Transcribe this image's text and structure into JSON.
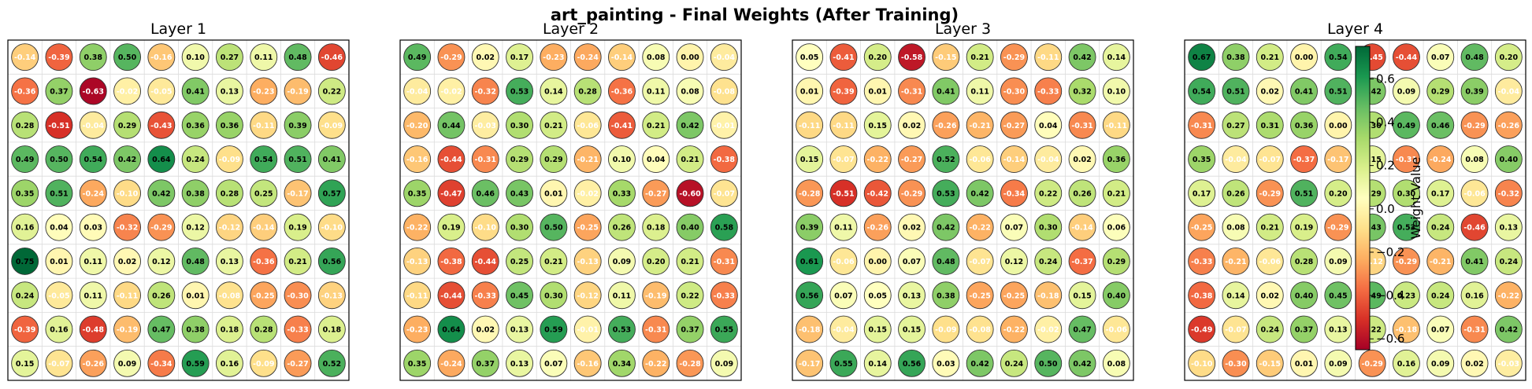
{
  "chart_data": {
    "type": "heatmap",
    "title": "art_painting - Final Weights (After Training)",
    "colorbar": {
      "label": "Weight Value",
      "range": [
        -0.65,
        0.75
      ],
      "ticks": [
        -0.6,
        -0.4,
        -0.2,
        0.0,
        0.2,
        0.4,
        0.6
      ],
      "tick_labels": [
        "−0.6",
        "−0.4",
        "−0.2",
        "0.0",
        "0.2",
        "0.4",
        "0.6"
      ],
      "colormap": "RdYlGn"
    },
    "panels": [
      {
        "title": "Layer 1",
        "values": [
          [
            "-0.14",
            "-0.39",
            "0.38",
            "0.50",
            "-0.16",
            "0.10",
            "0.27",
            "0.11",
            "0.48",
            "-0.46"
          ],
          [
            "-0.36",
            "0.37",
            "-0.63",
            "-0.02",
            "-0.05",
            "0.41",
            "0.13",
            "-0.23",
            "-0.19",
            "0.22"
          ],
          [
            "0.28",
            "-0.51",
            "-0.04",
            "0.29",
            "-0.43",
            "0.36",
            "0.36",
            "-0.11",
            "0.39",
            "-0.09"
          ],
          [
            "0.49",
            "0.50",
            "0.54",
            "0.42",
            "0.64",
            "0.24",
            "-0.09",
            "0.54",
            "0.51",
            "0.41"
          ],
          [
            "0.35",
            "0.51",
            "-0.24",
            "-0.10",
            "0.42",
            "0.38",
            "0.28",
            "0.25",
            "-0.17",
            "0.57"
          ],
          [
            "0.16",
            "0.04",
            "0.03",
            "-0.32",
            "-0.29",
            "0.12",
            "-0.12",
            "-0.14",
            "0.19",
            "-0.10"
          ],
          [
            "0.75",
            "0.01",
            "0.11",
            "0.02",
            "0.12",
            "0.48",
            "0.13",
            "-0.36",
            "0.21",
            "0.56"
          ],
          [
            "0.24",
            "-0.05",
            "0.11",
            "-0.11",
            "0.26",
            "0.01",
            "-0.08",
            "-0.25",
            "-0.30",
            "-0.13"
          ],
          [
            "-0.39",
            "0.16",
            "-0.48",
            "-0.19",
            "0.47",
            "0.38",
            "0.18",
            "0.28",
            "-0.33",
            "0.18"
          ],
          [
            "0.15",
            "-0.07",
            "-0.26",
            "0.09",
            "-0.34",
            "0.59",
            "0.16",
            "-0.09",
            "-0.27",
            "0.52"
          ]
        ]
      },
      {
        "title": "Layer 2",
        "values": [
          [
            "0.49",
            "-0.29",
            "0.02",
            "0.17",
            "-0.23",
            "-0.24",
            "-0.14",
            "0.08",
            "0.00",
            "-0.04"
          ],
          [
            "-0.04",
            "-0.02",
            "-0.32",
            "0.53",
            "0.14",
            "0.28",
            "-0.36",
            "0.11",
            "0.08",
            "-0.08"
          ],
          [
            "-0.20",
            "0.44",
            "-0.03",
            "0.30",
            "0.21",
            "-0.06",
            "-0.41",
            "0.21",
            "0.42",
            "-0.01"
          ],
          [
            "-0.16",
            "-0.44",
            "-0.31",
            "0.29",
            "0.29",
            "-0.21",
            "0.10",
            "0.04",
            "0.21",
            "-0.38"
          ],
          [
            "0.35",
            "-0.47",
            "0.46",
            "0.43",
            "0.01",
            "-0.02",
            "0.33",
            "-0.27",
            "-0.60",
            "-0.07"
          ],
          [
            "-0.22",
            "0.19",
            "-0.10",
            "0.30",
            "0.50",
            "-0.25",
            "0.26",
            "0.18",
            "0.40",
            "0.58"
          ],
          [
            "-0.13",
            "-0.38",
            "-0.44",
            "0.25",
            "0.21",
            "-0.13",
            "0.09",
            "0.20",
            "0.21",
            "-0.31"
          ],
          [
            "-0.11",
            "-0.44",
            "-0.33",
            "0.45",
            "0.30",
            "-0.12",
            "0.11",
            "-0.19",
            "0.22",
            "-0.33"
          ],
          [
            "-0.23",
            "0.64",
            "0.02",
            "0.13",
            "0.59",
            "-0.01",
            "0.53",
            "-0.31",
            "0.37",
            "0.55"
          ],
          [
            "0.35",
            "-0.24",
            "0.37",
            "0.13",
            "0.07",
            "-0.16",
            "0.34",
            "-0.22",
            "-0.28",
            "0.09"
          ]
        ]
      },
      {
        "title": "Layer 3",
        "values": [
          [
            "0.05",
            "-0.41",
            "0.20",
            "-0.58",
            "-0.15",
            "0.21",
            "-0.29",
            "-0.11",
            "0.42",
            "0.14"
          ],
          [
            "0.01",
            "-0.39",
            "0.01",
            "-0.31",
            "0.41",
            "0.11",
            "-0.30",
            "-0.33",
            "0.32",
            "0.10"
          ],
          [
            "-0.11",
            "-0.11",
            "0.15",
            "0.02",
            "-0.26",
            "-0.21",
            "-0.27",
            "0.04",
            "-0.31",
            "-0.11"
          ],
          [
            "0.15",
            "-0.07",
            "-0.22",
            "-0.27",
            "0.52",
            "-0.06",
            "-0.14",
            "-0.04",
            "0.02",
            "0.36"
          ],
          [
            "-0.28",
            "-0.51",
            "-0.42",
            "-0.29",
            "0.53",
            "0.42",
            "-0.34",
            "0.22",
            "0.26",
            "0.21"
          ],
          [
            "0.39",
            "0.11",
            "-0.26",
            "0.02",
            "0.42",
            "-0.22",
            "0.07",
            "0.30",
            "-0.14",
            "0.06"
          ],
          [
            "0.61",
            "-0.06",
            "0.00",
            "0.07",
            "0.48",
            "-0.07",
            "0.12",
            "0.24",
            "-0.37",
            "0.29"
          ],
          [
            "0.56",
            "0.07",
            "0.05",
            "0.13",
            "0.38",
            "-0.25",
            "-0.25",
            "-0.18",
            "0.15",
            "0.40"
          ],
          [
            "-0.18",
            "-0.04",
            "0.15",
            "0.15",
            "-0.09",
            "-0.08",
            "-0.22",
            "-0.02",
            "0.47",
            "-0.06"
          ],
          [
            "-0.17",
            "0.55",
            "0.14",
            "0.56",
            "0.03",
            "0.42",
            "0.24",
            "0.50",
            "0.42",
            "0.08"
          ]
        ]
      },
      {
        "title": "Layer 4",
        "values": [
          [
            "0.67",
            "0.38",
            "0.21",
            "0.00",
            "0.54",
            "-0.45",
            "-0.44",
            "0.07",
            "0.48",
            "0.20"
          ],
          [
            "0.54",
            "0.51",
            "0.02",
            "0.41",
            "0.51",
            "0.42",
            "0.09",
            "0.29",
            "0.39",
            "-0.04"
          ],
          [
            "-0.31",
            "0.27",
            "0.31",
            "0.36",
            "0.00",
            "0.30",
            "0.49",
            "0.46",
            "-0.29",
            "-0.26"
          ],
          [
            "0.35",
            "-0.04",
            "-0.07",
            "-0.37",
            "-0.17",
            "0.15",
            "-0.31",
            "-0.24",
            "0.08",
            "0.40"
          ],
          [
            "0.17",
            "0.26",
            "-0.29",
            "0.51",
            "0.20",
            "0.29",
            "0.30",
            "0.17",
            "-0.06",
            "-0.32"
          ],
          [
            "-0.25",
            "0.08",
            "0.21",
            "0.19",
            "-0.29",
            "0.43",
            "0.53",
            "0.24",
            "-0.46",
            "0.13"
          ],
          [
            "-0.33",
            "-0.21",
            "-0.06",
            "0.28",
            "0.09",
            "-0.12",
            "-0.29",
            "-0.21",
            "0.41",
            "0.24"
          ],
          [
            "-0.38",
            "0.14",
            "0.02",
            "0.40",
            "0.45",
            "0.49",
            "0.23",
            "0.24",
            "0.16",
            "-0.22"
          ],
          [
            "-0.49",
            "-0.07",
            "0.24",
            "0.37",
            "0.13",
            "0.22",
            "-0.18",
            "0.07",
            "-0.31",
            "0.42"
          ],
          [
            "-0.10",
            "-0.30",
            "-0.15",
            "0.01",
            "0.09",
            "-0.29",
            "0.16",
            "0.09",
            "0.02",
            "-0.03"
          ]
        ]
      }
    ]
  }
}
